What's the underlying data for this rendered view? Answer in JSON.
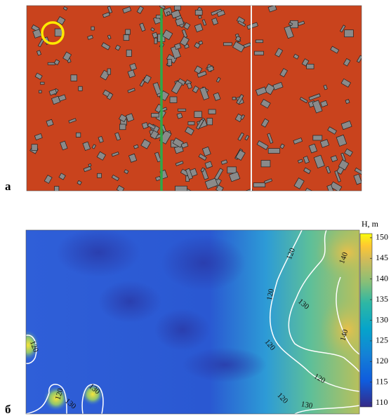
{
  "panels": [
    {
      "label": "а"
    },
    {
      "label": "б",
      "colorbar": {
        "title": "H, m",
        "lim": [
          109,
          151
        ],
        "ticks": [
          110,
          115,
          120,
          125,
          130,
          135,
          140,
          145,
          150
        ]
      },
      "contour_labels": [
        120,
        140,
        120,
        130,
        120,
        140,
        120,
        120,
        130,
        120,
        120,
        130,
        130
      ]
    }
  ]
}
